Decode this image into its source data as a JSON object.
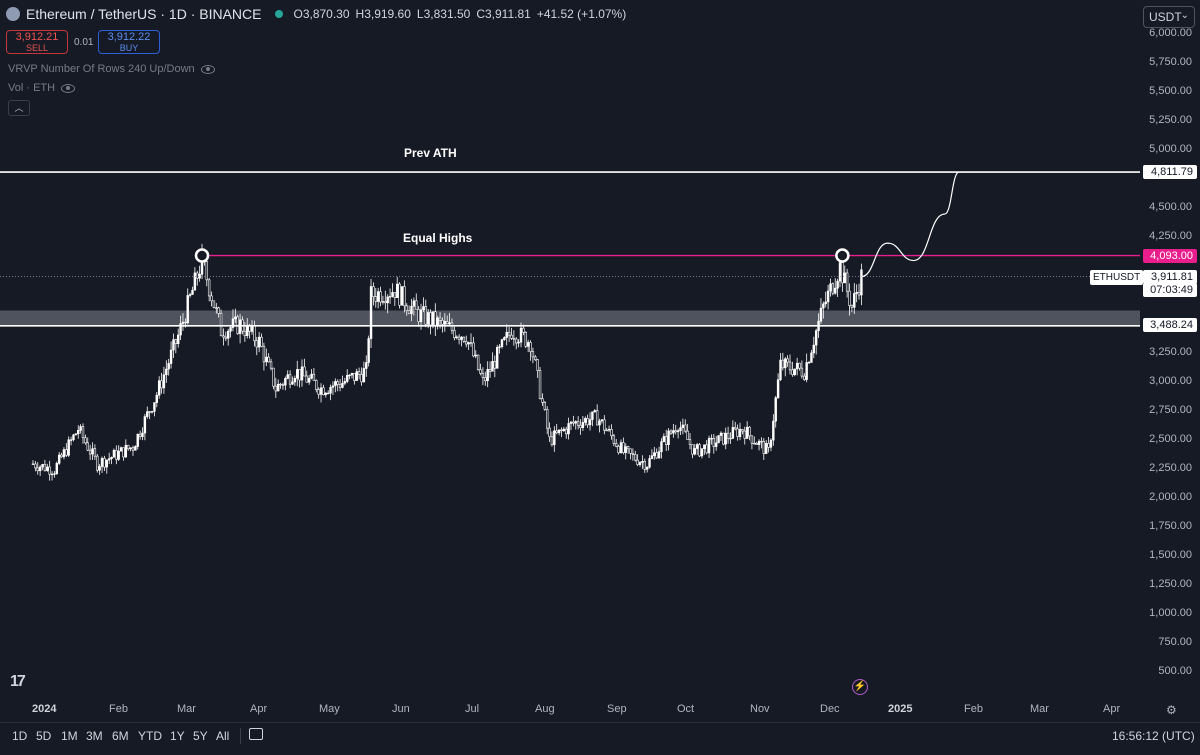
{
  "header": {
    "symbol": "Ethereum / TetherUS · 1D · BINANCE",
    "icon": "ethereum-logo-icon",
    "open": "O3,870.30",
    "high": "H3,919.60",
    "low": "L3,831.50",
    "close": "C3,911.81",
    "change": "+41.52 (+1.07%)"
  },
  "trade": {
    "sell_price": "3,912.21",
    "sell_label": "SELL",
    "spread": "0.01",
    "buy_price": "3,912.22",
    "buy_label": "BUY"
  },
  "indicators": {
    "vrvp": "VRVP Number Of Rows 240 Up/Down",
    "vol": "Vol · ETH"
  },
  "currency": "USDT",
  "price_axis": [
    "6,000.00",
    "5,750.00",
    "5,500.00",
    "5,250.00",
    "5,000.00",
    "4,750.00",
    "4,500.00",
    "4,250.00",
    "4,000.00",
    "3,750.00",
    "3,500.00",
    "3,250.00",
    "3,000.00",
    "2,750.00",
    "2,500.00",
    "2,250.00",
    "2,000.00",
    "1,750.00",
    "1,500.00",
    "1,250.00",
    "1,000.00",
    "750.00",
    "500.00"
  ],
  "price_labels": {
    "prev_ath": "4,811.79",
    "equal_highs": "4,093.00",
    "symbol_tag": "ETHUSDT",
    "last_price": "3,911.81",
    "countdown": "07:03:49",
    "support": "3,488.24"
  },
  "annotations": {
    "prev_ath": "Prev ATH",
    "equal_highs": "Equal Highs"
  },
  "time_axis": [
    "2024",
    "Feb",
    "Mar",
    "Apr",
    "May",
    "Jun",
    "Jul",
    "Aug",
    "Sep",
    "Oct",
    "Nov",
    "Dec",
    "2025",
    "Feb",
    "Mar",
    "Apr"
  ],
  "timeframes": [
    "1D",
    "5D",
    "1M",
    "3M",
    "6M",
    "YTD",
    "1Y",
    "5Y",
    "All"
  ],
  "clock": "16:56:12 (UTC)",
  "colors": {
    "background": "#161a25",
    "candle": "#ffffff",
    "equal_highs_line": "#e91e8c",
    "ath_line": "#ffffff",
    "zone": "#9598a1"
  },
  "chart_data": {
    "type": "candlestick",
    "title": "Ethereum / TetherUS · 1D · BINANCE",
    "x_range": [
      "2024-01-01",
      "2025-04-30"
    ],
    "ylim": [
      500,
      6000
    ],
    "levels": [
      {
        "label": "Prev ATH",
        "value": 4811.79
      },
      {
        "label": "Equal Highs",
        "value": 4093.0
      },
      {
        "value": 3488.24
      },
      {
        "value": 3911.81
      }
    ],
    "zone": [
      3488.24,
      3620
    ],
    "price_path": [
      [
        "2024-01-01",
        2300
      ],
      [
        "2024-01-10",
        2250
      ],
      [
        "2024-01-20",
        2600
      ],
      [
        "2024-01-28",
        2300
      ],
      [
        "2024-02-12",
        2450
      ],
      [
        "2024-02-22",
        2900
      ],
      [
        "2024-03-02",
        3400
      ],
      [
        "2024-03-12",
        4050
      ],
      [
        "2024-03-20",
        3450
      ],
      [
        "2024-03-28",
        3500
      ],
      [
        "2024-04-05",
        3350
      ],
      [
        "2024-04-12",
        2950
      ],
      [
        "2024-04-20",
        3100
      ],
      [
        "2024-05-01",
        2950
      ],
      [
        "2024-05-10",
        3000
      ],
      [
        "2024-05-20",
        3100
      ],
      [
        "2024-05-22",
        3750
      ],
      [
        "2024-06-01",
        3800
      ],
      [
        "2024-06-10",
        3600
      ],
      [
        "2024-06-20",
        3500
      ],
      [
        "2024-07-01",
        3400
      ],
      [
        "2024-07-08",
        3000
      ],
      [
        "2024-07-20",
        3450
      ],
      [
        "2024-07-28",
        3350
      ],
      [
        "2024-08-05",
        2500
      ],
      [
        "2024-08-15",
        2650
      ],
      [
        "2024-08-25",
        2700
      ],
      [
        "2024-09-05",
        2400
      ],
      [
        "2024-09-15",
        2300
      ],
      [
        "2024-09-28",
        2650
      ],
      [
        "2024-10-05",
        2400
      ],
      [
        "2024-10-15",
        2500
      ],
      [
        "2024-10-25",
        2600
      ],
      [
        "2024-11-05",
        2400
      ],
      [
        "2024-11-10",
        3150
      ],
      [
        "2024-11-20",
        3100
      ],
      [
        "2024-11-28",
        3650
      ],
      [
        "2024-12-05",
        4000
      ],
      [
        "2024-12-10",
        3650
      ],
      [
        "2024-12-14",
        3911.81
      ]
    ],
    "projection": [
      [
        "2024-12-14",
        3911.81
      ],
      [
        "2024-12-25",
        4200
      ],
      [
        "2025-01-05",
        4050
      ],
      [
        "2025-01-18",
        4450
      ],
      [
        "2025-01-24",
        4811.79
      ]
    ],
    "markers": [
      {
        "date": "2024-03-12",
        "value": 4093.0
      },
      {
        "date": "2024-12-06",
        "value": 4093.0
      }
    ]
  }
}
